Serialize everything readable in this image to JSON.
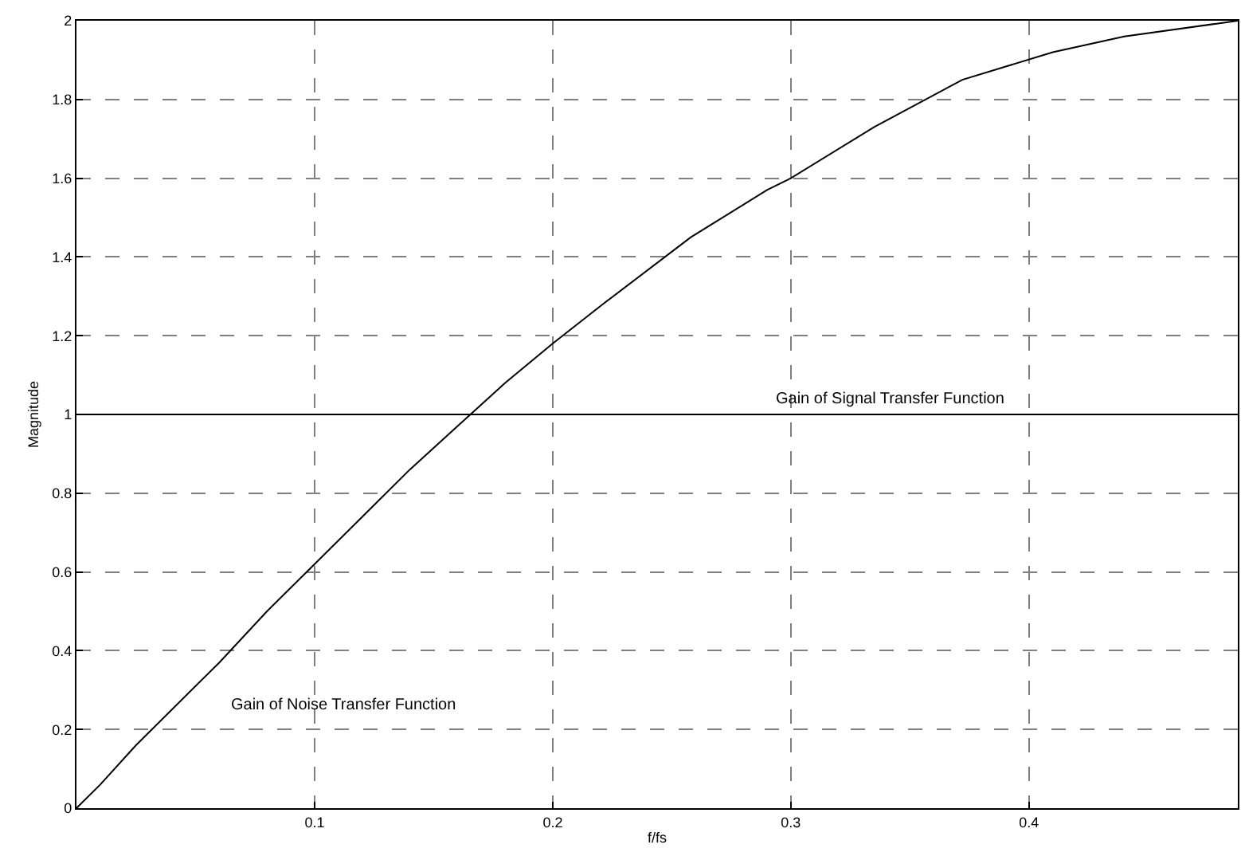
{
  "chart_data": {
    "type": "line",
    "xlabel": "f/fs",
    "ylabel": "Magnitude",
    "xlim": [
      0,
      0.4877
    ],
    "ylim": [
      0,
      2
    ],
    "xticks": [
      0.1,
      0.2,
      0.3,
      0.4
    ],
    "yticks": [
      0,
      0.2,
      0.4,
      0.6,
      0.8,
      1,
      1.2,
      1.4,
      1.6,
      1.8,
      2
    ],
    "grid": true,
    "marker": "none",
    "line_style": "solid",
    "series": [
      {
        "color": "#000000",
        "x": [
          0,
          0.01,
          0.025,
          0.04,
          0.06,
          0.08,
          0.1,
          0.12,
          0.14,
          0.16,
          0.18,
          0.2,
          0.221,
          0.258,
          0.29,
          0.3,
          0.335,
          0.372,
          0.41,
          0.44,
          0.4877
        ],
        "values": [
          0,
          0.06,
          0.16,
          0.25,
          0.37,
          0.5,
          0.62,
          0.74,
          0.86,
          0.97,
          1.08,
          1.18,
          1.28,
          1.45,
          1.57,
          1.6,
          1.73,
          1.85,
          1.92,
          1.96,
          2.0
        ]
      },
      {
        "color": "#000000",
        "x": [
          0,
          0.4877
        ],
        "values": [
          1,
          1
        ]
      }
    ],
    "annotations": [
      "Gain of Signal Transfer Function",
      "Gain of Noise Transfer Function"
    ]
  }
}
